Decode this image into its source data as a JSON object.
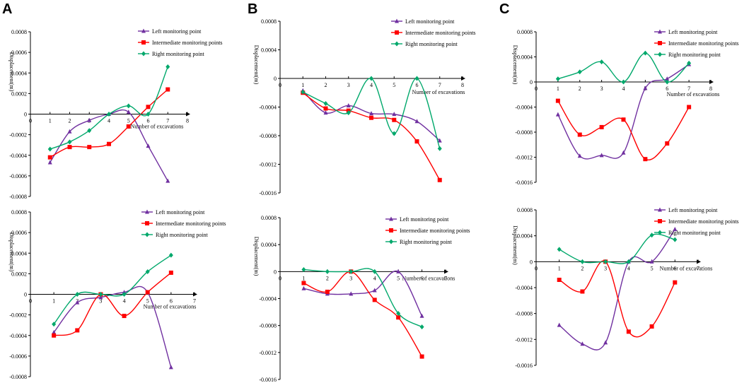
{
  "figure": {
    "panel_labels": [
      "A",
      "B",
      "C"
    ]
  },
  "colors": {
    "left": "#7030a0",
    "intermediate": "#ff0000",
    "right": "#00a86b"
  },
  "chart_data": [
    {
      "id": "A1",
      "type": "line",
      "xlabel": "Number of excavations",
      "ylabel": "Displacement(m)",
      "xlim": [
        0,
        8
      ],
      "ylim": [
        -0.0008,
        0.0008
      ],
      "xticks": [
        0,
        1,
        2,
        3,
        4,
        5,
        6,
        7,
        8
      ],
      "yticks": [
        -0.0008,
        -0.0006,
        -0.0004,
        -0.0002,
        0,
        0.0002,
        0.0004,
        0.0006,
        0.0008
      ],
      "ytick_labels": [
        "-0.0008",
        "-0.0006",
        "-0.0004",
        "-0.0002",
        "0",
        "0.0002",
        "0.0004",
        "0.0006",
        "0.0008"
      ],
      "x": [
        1,
        2,
        3,
        4,
        5,
        6,
        7
      ],
      "series": [
        {
          "name": "Left monitoring point",
          "key": "left",
          "values": [
            -0.00047,
            -0.00017,
            -6e-05,
            0.0,
            2e-05,
            -0.00031,
            -0.00065
          ]
        },
        {
          "name": "Intermediate monitoring points",
          "key": "intermediate",
          "values": [
            -0.00042,
            -0.00032,
            -0.00032,
            -0.00029,
            -0.00012,
            7e-05,
            0.00024
          ]
        },
        {
          "name": "Right monitoring point",
          "key": "right",
          "values": [
            -0.00034,
            -0.00027,
            -0.00016,
            0.0,
            8e-05,
            0.0,
            0.00046
          ]
        }
      ]
    },
    {
      "id": "A2",
      "type": "line",
      "xlabel": "Number of excavations",
      "ylabel": "Displacement(m)",
      "xlim": [
        0,
        7
      ],
      "ylim": [
        -0.0008,
        0.0008
      ],
      "xticks": [
        0,
        1,
        2,
        3,
        4,
        5,
        6,
        7
      ],
      "yticks": [
        -0.0008,
        -0.0006,
        -0.0004,
        -0.0002,
        0,
        0.0002,
        0.0004,
        0.0006,
        0.0008
      ],
      "ytick_labels": [
        "-0.0008",
        "-0.0006",
        "-0.0004",
        "-0.0002",
        "0",
        "0.0002",
        "0.0004",
        "0.0006",
        "0.0008"
      ],
      "x": [
        1,
        2,
        3,
        4,
        5,
        6
      ],
      "series": [
        {
          "name": "Left monitoring point",
          "key": "left",
          "values": [
            -0.00037,
            -8e-05,
            -3e-05,
            2e-05,
            2e-05,
            -0.00071
          ]
        },
        {
          "name": "Intermediate monitoring points",
          "key": "intermediate",
          "values": [
            -0.0004,
            -0.00035,
            0.0,
            -0.00021,
            2e-05,
            0.00021
          ]
        },
        {
          "name": "Right monitoring point",
          "key": "right",
          "values": [
            -0.00029,
            0.0,
            0.0,
            0.0,
            0.00022,
            0.00038
          ]
        }
      ]
    },
    {
      "id": "B1",
      "type": "line",
      "xlabel": "Number of excavations",
      "ylabel": "Displacement(m)",
      "xlim": [
        0,
        8
      ],
      "ylim": [
        -0.0016,
        0.0008
      ],
      "xticks": [
        0,
        1,
        2,
        3,
        4,
        5,
        6,
        7,
        8
      ],
      "yticks": [
        -0.0016,
        -0.0012,
        -0.0008,
        -0.0004,
        0,
        0.0004,
        0.0008
      ],
      "ytick_labels": [
        "-0.0016",
        "-0.0012",
        "-0.0008",
        "-0.0004",
        "0",
        "0.0004",
        "0.0008"
      ],
      "x": [
        1,
        2,
        3,
        4,
        5,
        6,
        7
      ],
      "series": [
        {
          "name": "Left monitoring point",
          "key": "left",
          "values": [
            -0.00017,
            -0.00048,
            -0.00038,
            -0.00049,
            -0.0005,
            -0.0006,
            -0.00087
          ]
        },
        {
          "name": "Intermediate monitoring points",
          "key": "intermediate",
          "values": [
            -0.0002,
            -0.00042,
            -0.00045,
            -0.00055,
            -0.00058,
            -0.00088,
            -0.00142
          ]
        },
        {
          "name": "Right monitoring point",
          "key": "right",
          "values": [
            -0.00019,
            -0.00035,
            -0.00048,
            0.0,
            -0.00077,
            0.0,
            -0.00098
          ]
        }
      ]
    },
    {
      "id": "B2",
      "type": "line",
      "xlabel": "Number of excavations",
      "ylabel": "Displacement(m)",
      "xlim": [
        0,
        7
      ],
      "ylim": [
        -0.0016,
        0.0008
      ],
      "xticks": [
        0,
        1,
        2,
        3,
        4,
        5,
        6,
        7
      ],
      "yticks": [
        -0.0016,
        -0.0012,
        -0.0008,
        -0.0004,
        0,
        0.0004,
        0.0008
      ],
      "ytick_labels": [
        "-0.0016",
        "-0.0012",
        "-0.0008",
        "-0.0004",
        "0",
        "0.0004",
        "0.0008"
      ],
      "x": [
        1,
        2,
        3,
        4,
        5,
        6
      ],
      "series": [
        {
          "name": "Left monitoring point",
          "key": "left",
          "values": [
            -0.00025,
            -0.00033,
            -0.00033,
            -0.00028,
            0.0,
            -0.00066
          ]
        },
        {
          "name": "Intermediate monitoring points",
          "key": "intermediate",
          "values": [
            -0.00017,
            -0.0003,
            0.0,
            -0.00042,
            -0.00068,
            -0.00126
          ]
        },
        {
          "name": "Right monitoring point",
          "key": "right",
          "values": [
            3e-05,
            0.0,
            0.0,
            0.0,
            -0.00062,
            -0.00082
          ]
        }
      ]
    },
    {
      "id": "C1",
      "type": "line",
      "xlabel": "Number of excavations",
      "ylabel": "Displacement(m)",
      "xlim": [
        0,
        8
      ],
      "ylim": [
        -0.0016,
        0.0008
      ],
      "xticks": [
        0,
        1,
        2,
        3,
        4,
        5,
        6,
        7,
        8
      ],
      "yticks": [
        -0.0016,
        -0.0012,
        -0.0008,
        -0.0004,
        0,
        0.0004,
        0.0008
      ],
      "ytick_labels": [
        "-0.0016",
        "-0.0012",
        "-0.0008",
        "-0.0004",
        "0",
        "0.0004",
        "0.0008"
      ],
      "x": [
        1,
        2,
        3,
        4,
        5,
        6,
        7
      ],
      "series": [
        {
          "name": "Left monitoring point",
          "key": "left",
          "values": [
            -0.00052,
            -0.00118,
            -0.00117,
            -0.00113,
            -0.0001,
            5e-05,
            0.00028
          ]
        },
        {
          "name": "Intermediate monitoring points",
          "key": "intermediate",
          "values": [
            -0.0003,
            -0.00084,
            -0.00072,
            -0.0006,
            -0.00123,
            -0.00098,
            -0.0004
          ]
        },
        {
          "name": "Right monitoring point",
          "key": "right",
          "values": [
            5e-05,
            0.00016,
            0.00032,
            0.0,
            0.00046,
            0.0,
            0.0003
          ]
        }
      ]
    },
    {
      "id": "C2",
      "type": "line",
      "xlabel": "Number of excavations",
      "ylabel": "Displacement(m)",
      "xlim": [
        0,
        7
      ],
      "ylim": [
        -0.0016,
        0.0008
      ],
      "xticks": [
        0,
        1,
        2,
        3,
        4,
        5,
        6,
        7
      ],
      "yticks": [
        -0.0016,
        -0.0012,
        -0.0008,
        -0.0004,
        0,
        0.0004,
        0.0008
      ],
      "ytick_labels": [
        "-0.0016",
        "-0.0012",
        "-0.0008",
        "-0.0004",
        "0",
        "0.0004",
        "0.0008"
      ],
      "x": [
        1,
        2,
        3,
        4,
        5,
        6
      ],
      "series": [
        {
          "name": "Left monitoring point",
          "key": "left",
          "values": [
            -0.00098,
            -0.00127,
            -0.00125,
            0.0,
            0.0,
            0.0005
          ]
        },
        {
          "name": "Intermediate monitoring points",
          "key": "intermediate",
          "values": [
            -0.00028,
            -0.00046,
            0.0,
            -0.00108,
            -0.001,
            -0.00032
          ]
        },
        {
          "name": "Right monitoring point",
          "key": "right",
          "values": [
            0.00019,
            0.0,
            0.0,
            0.0,
            0.00041,
            0.00034
          ]
        }
      ]
    }
  ]
}
